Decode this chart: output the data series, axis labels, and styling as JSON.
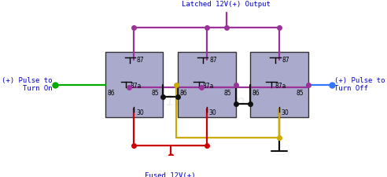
{
  "label_latched": "Latched 12V(+) Output",
  "label_fused": "Fused 12V(+)",
  "label_turn_on": "(+) Pulse to\nTurn On",
  "label_turn_off": "(+) Pulse to\nTurn Off",
  "relay_bg": "#aaaacc",
  "relay_border": "#333333",
  "wire_purple": "#993399",
  "wire_green": "#00aa00",
  "wire_red": "#cc0000",
  "wire_yellow": "#ccaa00",
  "wire_black": "#111111",
  "wire_blue": "#3377ff",
  "text_blue": "#0000cc",
  "bg_color": "#ffffff",
  "watermark": "the12volt.com"
}
